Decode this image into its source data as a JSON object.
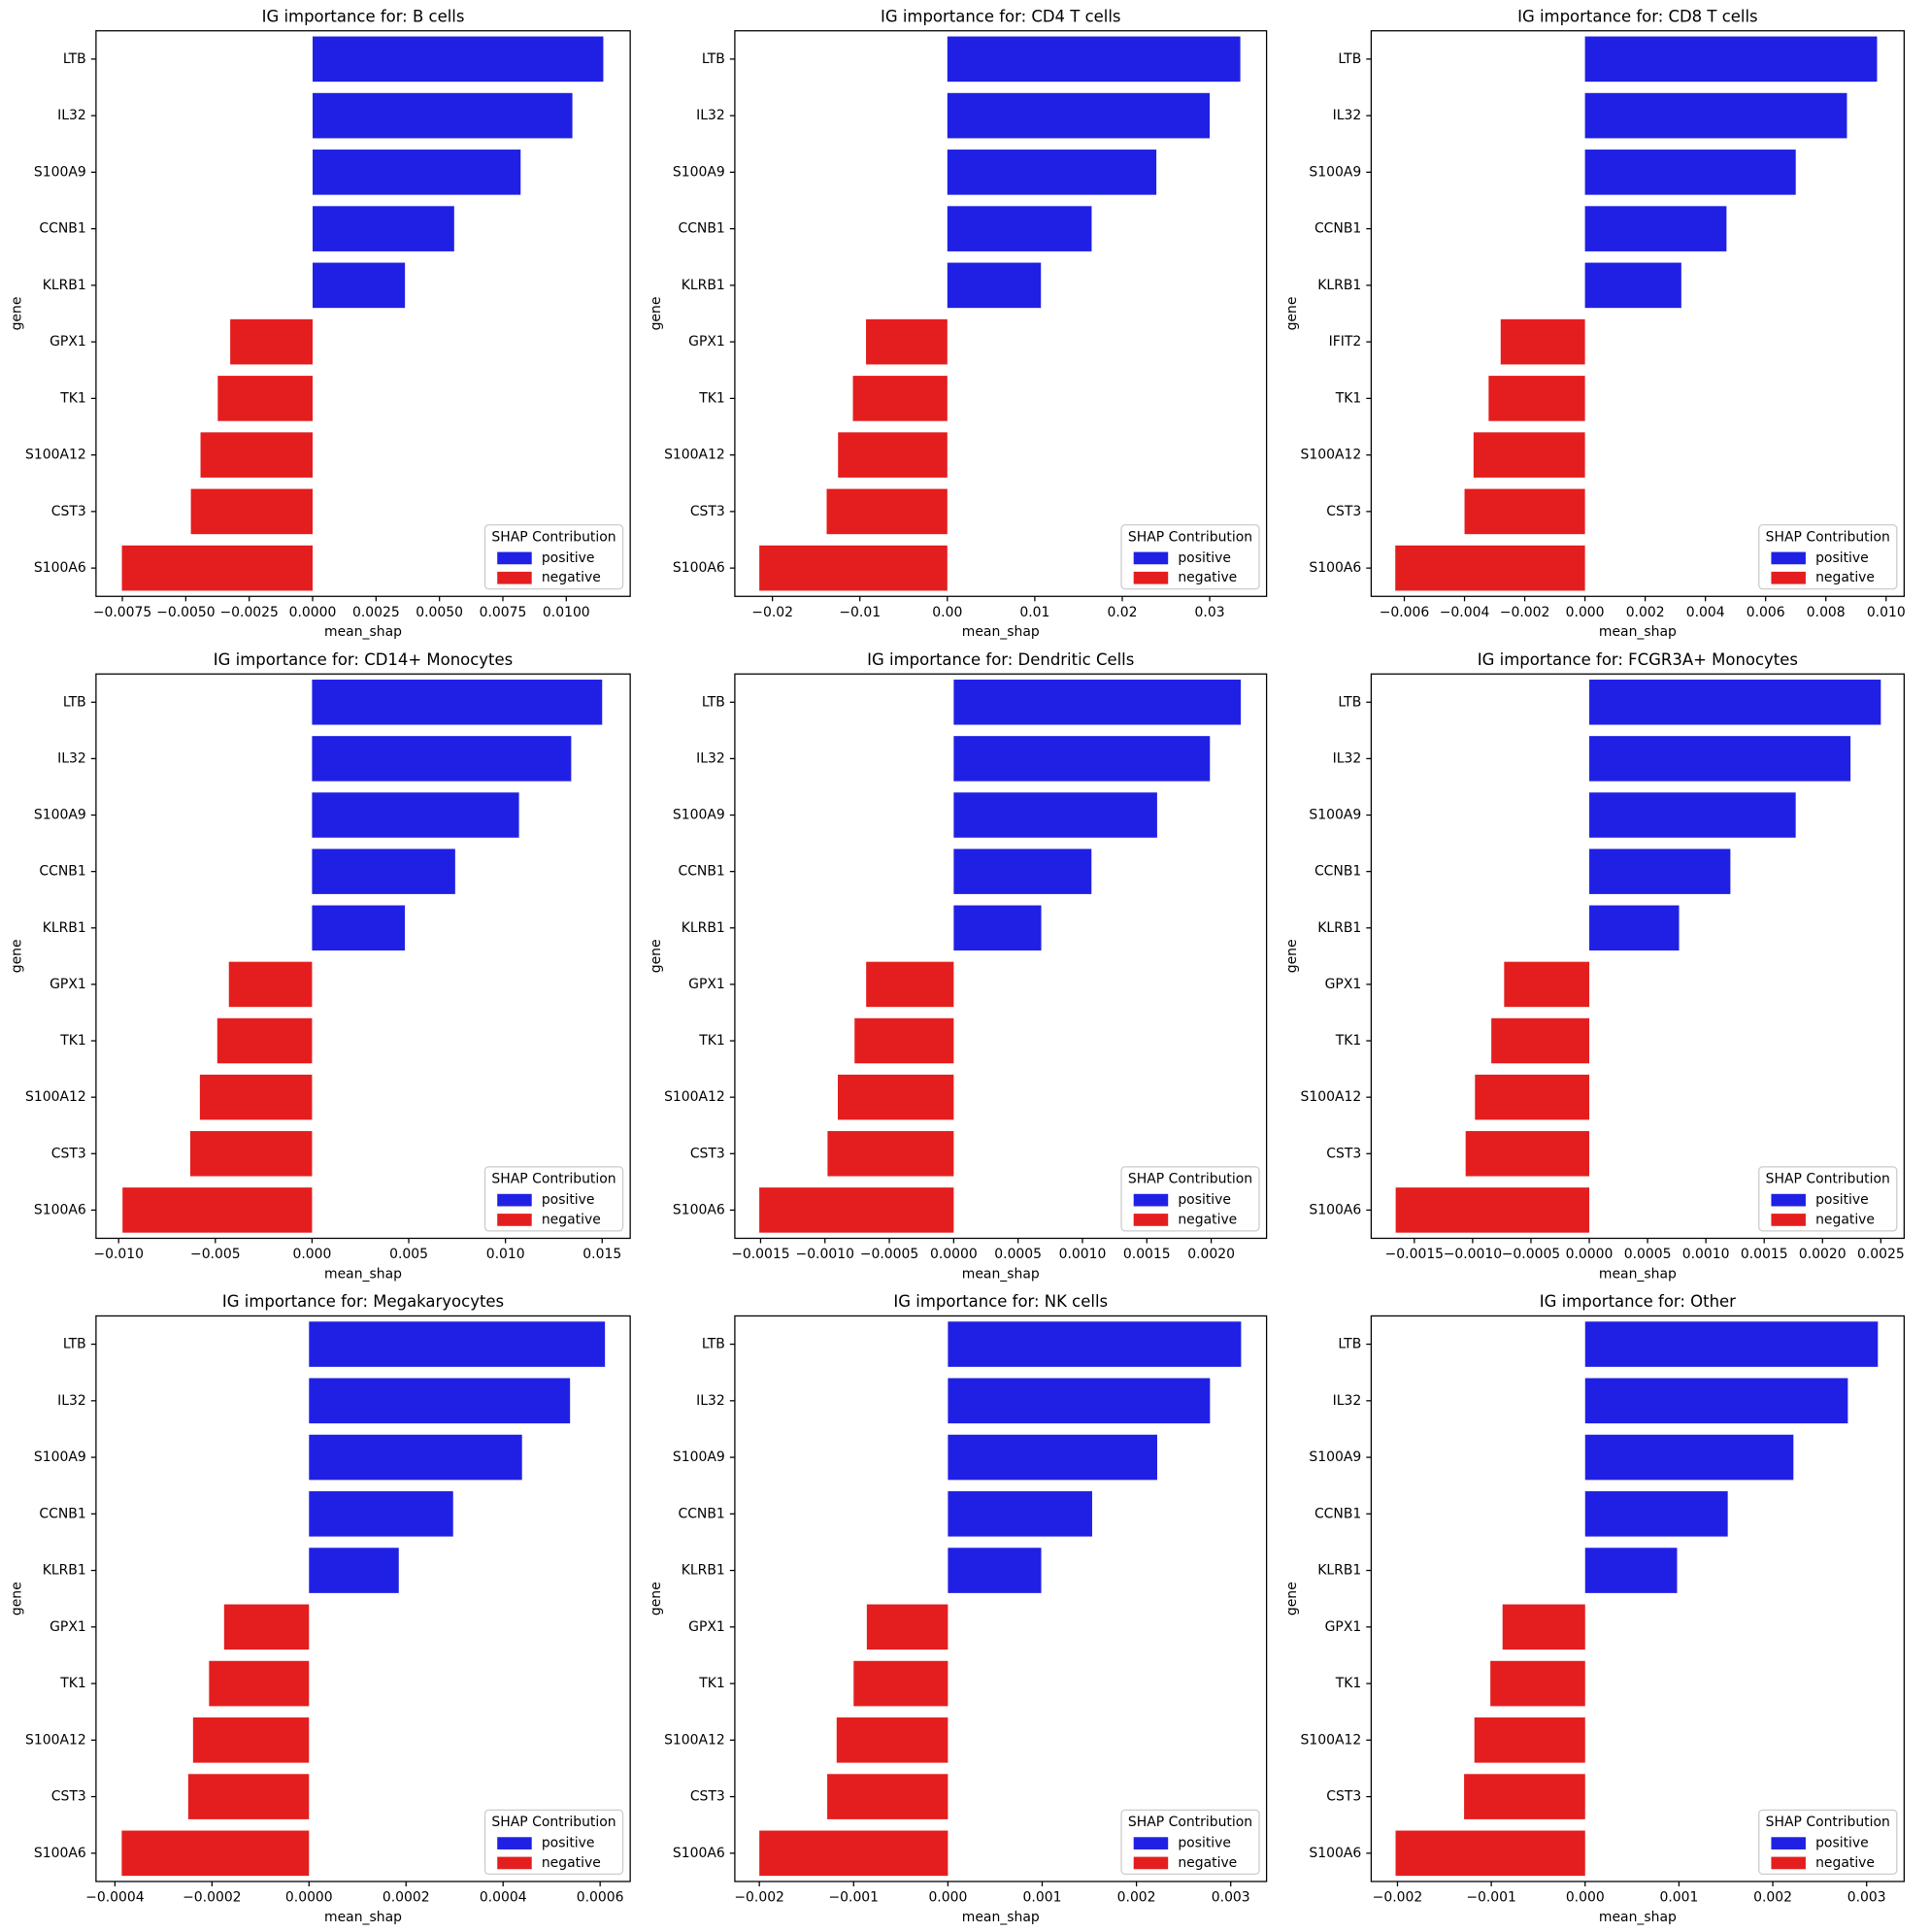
{
  "chart_data": [
    {
      "type": "barh",
      "title": "IG importance for: B cells",
      "xlabel": "mean_shap",
      "ylabel": "gene",
      "legend_title": "SHAP Contribution",
      "legend_loc": "lower right",
      "categories": [
        "LTB",
        "IL32",
        "S100A9",
        "CCNB1",
        "KLRB1",
        "GPX1",
        "TK1",
        "S100A12",
        "CST3",
        "S100A6"
      ],
      "series": [
        {
          "name": "positive",
          "color": "#2020e4",
          "values": [
            0.01146,
            0.01024,
            0.0082,
            0.00558,
            0.00364,
            null,
            null,
            null,
            null,
            null
          ]
        },
        {
          "name": "negative",
          "color": "#e41e1e",
          "values": [
            null,
            null,
            null,
            null,
            null,
            -0.00325,
            -0.00374,
            -0.00442,
            -0.0048,
            -0.00752
          ]
        }
      ],
      "xlim": [
        -0.00854,
        0.01252
      ],
      "xticks": [
        {
          "value": -0.0075,
          "label": "−0.0075"
        },
        {
          "value": -0.005,
          "label": "−0.0050"
        },
        {
          "value": -0.0025,
          "label": "−0.0025"
        },
        {
          "value": 0,
          "label": "0.0000"
        },
        {
          "value": 0.0025,
          "label": "0.0025"
        },
        {
          "value": 0.005,
          "label": "0.0050"
        },
        {
          "value": 0.0075,
          "label": "0.0075"
        },
        {
          "value": 0.01,
          "label": "0.0100"
        }
      ]
    },
    {
      "type": "barh",
      "title": "IG importance for: CD4 T cells",
      "xlabel": "mean_shap",
      "ylabel": "gene",
      "legend_title": "SHAP Contribution",
      "legend_loc": "lower right",
      "categories": [
        "LTB",
        "IL32",
        "S100A9",
        "CCNB1",
        "KLRB1",
        "GPX1",
        "TK1",
        "S100A12",
        "CST3",
        "S100A6"
      ],
      "series": [
        {
          "name": "positive",
          "color": "#2020e4",
          "values": [
            0.0335,
            0.03,
            0.0239,
            0.0165,
            0.0107,
            null,
            null,
            null,
            null,
            null
          ]
        },
        {
          "name": "negative",
          "color": "#e41e1e",
          "values": [
            null,
            null,
            null,
            null,
            null,
            -0.0093,
            -0.0108,
            -0.0125,
            -0.0138,
            -0.0215
          ]
        }
      ],
      "xlim": [
        -0.0243,
        0.0365
      ],
      "xticks": [
        {
          "value": -0.02,
          "label": "−0.02"
        },
        {
          "value": -0.01,
          "label": "−0.01"
        },
        {
          "value": 0,
          "label": "0.00"
        },
        {
          "value": 0.01,
          "label": "0.01"
        },
        {
          "value": 0.02,
          "label": "0.02"
        },
        {
          "value": 0.03,
          "label": "0.03"
        }
      ]
    },
    {
      "type": "barh",
      "title": "IG importance for: CD8 T cells",
      "xlabel": "mean_shap",
      "ylabel": "gene",
      "legend_title": "SHAP Contribution",
      "legend_loc": "lower right",
      "categories": [
        "LTB",
        "IL32",
        "S100A9",
        "CCNB1",
        "KLRB1",
        "IFIT2",
        "TK1",
        "S100A12",
        "CST3",
        "S100A6"
      ],
      "series": [
        {
          "name": "positive",
          "color": "#2020e4",
          "values": [
            0.0097,
            0.0087,
            0.007,
            0.0047,
            0.0032,
            null,
            null,
            null,
            null,
            null
          ]
        },
        {
          "name": "negative",
          "color": "#e41e1e",
          "values": [
            null,
            null,
            null,
            null,
            null,
            -0.0028,
            -0.0032,
            -0.0037,
            -0.004,
            -0.0063
          ]
        }
      ],
      "xlim": [
        -0.0071,
        0.0106
      ],
      "xticks": [
        {
          "value": -0.006,
          "label": "−0.006"
        },
        {
          "value": -0.004,
          "label": "−0.004"
        },
        {
          "value": -0.002,
          "label": "−0.002"
        },
        {
          "value": 0,
          "label": "0.000"
        },
        {
          "value": 0.002,
          "label": "0.002"
        },
        {
          "value": 0.004,
          "label": "0.004"
        },
        {
          "value": 0.006,
          "label": "0.006"
        },
        {
          "value": 0.008,
          "label": "0.008"
        },
        {
          "value": 0.01,
          "label": "0.010"
        }
      ]
    },
    {
      "type": "barh",
      "title": "IG importance for: CD14+ Monocytes",
      "xlabel": "mean_shap",
      "ylabel": "gene",
      "legend_title": "SHAP Contribution",
      "legend_loc": "lower right",
      "categories": [
        "LTB",
        "IL32",
        "S100A9",
        "CCNB1",
        "KLRB1",
        "GPX1",
        "TK1",
        "S100A12",
        "CST3",
        "S100A6"
      ],
      "series": [
        {
          "name": "positive",
          "color": "#2020e4",
          "values": [
            0.015,
            0.0134,
            0.0107,
            0.0074,
            0.0048,
            null,
            null,
            null,
            null,
            null
          ]
        },
        {
          "name": "negative",
          "color": "#e41e1e",
          "values": [
            null,
            null,
            null,
            null,
            null,
            -0.0043,
            -0.0049,
            -0.0058,
            -0.0063,
            -0.0098
          ]
        }
      ],
      "xlim": [
        -0.01117,
        0.01645
      ],
      "xticks": [
        {
          "value": -0.01,
          "label": "−0.010"
        },
        {
          "value": -0.005,
          "label": "−0.005"
        },
        {
          "value": 0,
          "label": "0.000"
        },
        {
          "value": 0.005,
          "label": "0.005"
        },
        {
          "value": 0.01,
          "label": "0.010"
        },
        {
          "value": 0.015,
          "label": "0.015"
        }
      ]
    },
    {
      "type": "barh",
      "title": "IG importance for: Dendritic Cells",
      "xlabel": "mean_shap",
      "ylabel": "gene",
      "legend_title": "SHAP Contribution",
      "legend_loc": "lower right",
      "categories": [
        "LTB",
        "IL32",
        "S100A9",
        "CCNB1",
        "KLRB1",
        "GPX1",
        "TK1",
        "S100A12",
        "CST3",
        "S100A6"
      ],
      "series": [
        {
          "name": "positive",
          "color": "#2020e4",
          "values": [
            0.00223,
            0.00199,
            0.00158,
            0.00107,
            0.00068,
            null,
            null,
            null,
            null,
            null
          ]
        },
        {
          "name": "negative",
          "color": "#e41e1e",
          "values": [
            null,
            null,
            null,
            null,
            null,
            -0.00068,
            -0.00077,
            -0.0009,
            -0.00098,
            -0.00151
          ]
        }
      ],
      "xlim": [
        -0.0017,
        0.00243
      ],
      "xticks": [
        {
          "value": -0.0015,
          "label": "−0.0015"
        },
        {
          "value": -0.001,
          "label": "−0.0010"
        },
        {
          "value": -0.0005,
          "label": "−0.0005"
        },
        {
          "value": 0,
          "label": "0.0000"
        },
        {
          "value": 0.0005,
          "label": "0.0005"
        },
        {
          "value": 0.001,
          "label": "0.0010"
        },
        {
          "value": 0.0015,
          "label": "0.0015"
        },
        {
          "value": 0.002,
          "label": "0.0020"
        }
      ]
    },
    {
      "type": "barh",
      "title": "IG importance for: FCGR3A+ Monocytes",
      "xlabel": "mean_shap",
      "ylabel": "gene",
      "legend_title": "SHAP Contribution",
      "legend_loc": "lower right",
      "categories": [
        "LTB",
        "IL32",
        "S100A9",
        "CCNB1",
        "KLRB1",
        "GPX1",
        "TK1",
        "S100A12",
        "CST3",
        "S100A6"
      ],
      "series": [
        {
          "name": "positive",
          "color": "#2020e4",
          "values": [
            0.0025,
            0.00224,
            0.00177,
            0.00121,
            0.00077,
            null,
            null,
            null,
            null,
            null
          ]
        },
        {
          "name": "negative",
          "color": "#e41e1e",
          "values": [
            null,
            null,
            null,
            null,
            null,
            -0.00073,
            -0.00084,
            -0.00098,
            -0.00106,
            -0.00166
          ]
        }
      ],
      "xlim": [
        -0.00187,
        0.0027
      ],
      "xticks": [
        {
          "value": -0.0015,
          "label": "−0.0015"
        },
        {
          "value": -0.001,
          "label": "−0.0010"
        },
        {
          "value": -0.0005,
          "label": "−0.0005"
        },
        {
          "value": 0,
          "label": "0.0000"
        },
        {
          "value": 0.0005,
          "label": "0.0005"
        },
        {
          "value": 0.001,
          "label": "0.0010"
        },
        {
          "value": 0.0015,
          "label": "0.0015"
        },
        {
          "value": 0.002,
          "label": "0.0020"
        },
        {
          "value": 0.0025,
          "label": "0.0025"
        }
      ]
    },
    {
      "type": "barh",
      "title": "IG importance for: Megakaryocytes",
      "xlabel": "mean_shap",
      "ylabel": "gene",
      "legend_title": "SHAP Contribution",
      "legend_loc": "lower right",
      "categories": [
        "LTB",
        "IL32",
        "S100A9",
        "CCNB1",
        "KLRB1",
        "GPX1",
        "TK1",
        "S100A12",
        "CST3",
        "S100A6"
      ],
      "series": [
        {
          "name": "positive",
          "color": "#2020e4",
          "values": [
            0.00061,
            0.000538,
            0.000439,
            0.000297,
            0.000185,
            null,
            null,
            null,
            null,
            null
          ]
        },
        {
          "name": "negative",
          "color": "#e41e1e",
          "values": [
            null,
            null,
            null,
            null,
            null,
            -0.000175,
            -0.000206,
            -0.000239,
            -0.000249,
            -0.000386
          ]
        }
      ],
      "xlim": [
        -0.000439,
        0.000662
      ],
      "xticks": [
        {
          "value": -0.0004,
          "label": "−0.0004"
        },
        {
          "value": -0.0002,
          "label": "−0.0002"
        },
        {
          "value": 0,
          "label": "0.0000"
        },
        {
          "value": 0.0002,
          "label": "0.0002"
        },
        {
          "value": 0.0004,
          "label": "0.0004"
        },
        {
          "value": 0.0006,
          "label": "0.0006"
        }
      ]
    },
    {
      "type": "barh",
      "title": "IG importance for: NK cells",
      "xlabel": "mean_shap",
      "ylabel": "gene",
      "legend_title": "SHAP Contribution",
      "legend_loc": "lower right",
      "categories": [
        "LTB",
        "IL32",
        "S100A9",
        "CCNB1",
        "KLRB1",
        "GPX1",
        "TK1",
        "S100A12",
        "CST3",
        "S100A6"
      ],
      "series": [
        {
          "name": "positive",
          "color": "#2020e4",
          "values": [
            0.00311,
            0.00278,
            0.00222,
            0.00153,
            0.00099,
            null,
            null,
            null,
            null,
            null
          ]
        },
        {
          "name": "negative",
          "color": "#e41e1e",
          "values": [
            null,
            null,
            null,
            null,
            null,
            -0.00086,
            -0.001,
            -0.00118,
            -0.00128,
            -0.002
          ]
        }
      ],
      "xlim": [
        -0.00226,
        0.00338
      ],
      "xticks": [
        {
          "value": -0.002,
          "label": "−0.002"
        },
        {
          "value": -0.001,
          "label": "−0.001"
        },
        {
          "value": 0,
          "label": "0.000"
        },
        {
          "value": 0.001,
          "label": "0.001"
        },
        {
          "value": 0.002,
          "label": "0.002"
        },
        {
          "value": 0.003,
          "label": "0.003"
        }
      ]
    },
    {
      "type": "barh",
      "title": "IG importance for: Other",
      "xlabel": "mean_shap",
      "ylabel": "gene",
      "legend_title": "SHAP Contribution",
      "legend_loc": "lower right",
      "categories": [
        "LTB",
        "IL32",
        "S100A9",
        "CCNB1",
        "KLRB1",
        "GPX1",
        "TK1",
        "S100A12",
        "CST3",
        "S100A6"
      ],
      "series": [
        {
          "name": "positive",
          "color": "#2020e4",
          "values": [
            0.00312,
            0.0028,
            0.00222,
            0.00152,
            0.00098,
            null,
            null,
            null,
            null,
            null
          ]
        },
        {
          "name": "negative",
          "color": "#e41e1e",
          "values": [
            null,
            null,
            null,
            null,
            null,
            -0.00088,
            -0.00101,
            -0.00118,
            -0.00129,
            -0.00202
          ]
        }
      ],
      "xlim": [
        -0.00228,
        0.0034
      ],
      "xticks": [
        {
          "value": -0.002,
          "label": "−0.002"
        },
        {
          "value": -0.001,
          "label": "−0.001"
        },
        {
          "value": 0,
          "label": "0.000"
        },
        {
          "value": 0.001,
          "label": "0.001"
        },
        {
          "value": 0.002,
          "label": "0.002"
        },
        {
          "value": 0.003,
          "label": "0.003"
        }
      ]
    }
  ]
}
